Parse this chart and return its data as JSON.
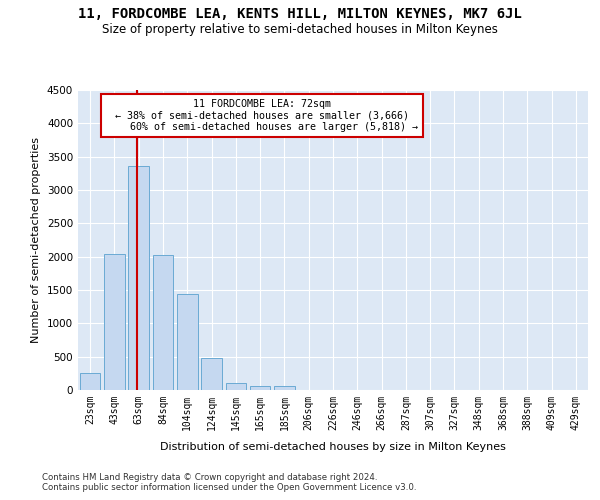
{
  "title": "11, FORDCOMBE LEA, KENTS HILL, MILTON KEYNES, MK7 6JL",
  "subtitle": "Size of property relative to semi-detached houses in Milton Keynes",
  "xlabel": "Distribution of semi-detached houses by size in Milton Keynes",
  "ylabel": "Number of semi-detached properties",
  "footer_line1": "Contains HM Land Registry data © Crown copyright and database right 2024.",
  "footer_line2": "Contains public sector information licensed under the Open Government Licence v3.0.",
  "bar_labels": [
    "23sqm",
    "43sqm",
    "63sqm",
    "84sqm",
    "104sqm",
    "124sqm",
    "145sqm",
    "165sqm",
    "185sqm",
    "206sqm",
    "226sqm",
    "246sqm",
    "266sqm",
    "287sqm",
    "307sqm",
    "327sqm",
    "348sqm",
    "368sqm",
    "388sqm",
    "409sqm",
    "429sqm"
  ],
  "bar_values": [
    255,
    2035,
    3360,
    2030,
    1440,
    475,
    105,
    60,
    55,
    0,
    0,
    0,
    0,
    0,
    0,
    0,
    0,
    0,
    0,
    0,
    0
  ],
  "bar_color": "#c5d8f0",
  "bar_edge_color": "#6aaad4",
  "vline_color": "#cc0000",
  "ylim": [
    0,
    4500
  ],
  "yticks": [
    0,
    500,
    1000,
    1500,
    2000,
    2500,
    3000,
    3500,
    4000,
    4500
  ],
  "bg_color": "#dde8f5",
  "grid_color": "#ffffff",
  "annotation_box_color": "#ffffff",
  "annotation_box_edge": "#cc0000",
  "property_label": "11 FORDCOMBE LEA: 72sqm",
  "pct_smaller": 38,
  "pct_larger": 60,
  "count_smaller": 3666,
  "count_larger": 5818
}
